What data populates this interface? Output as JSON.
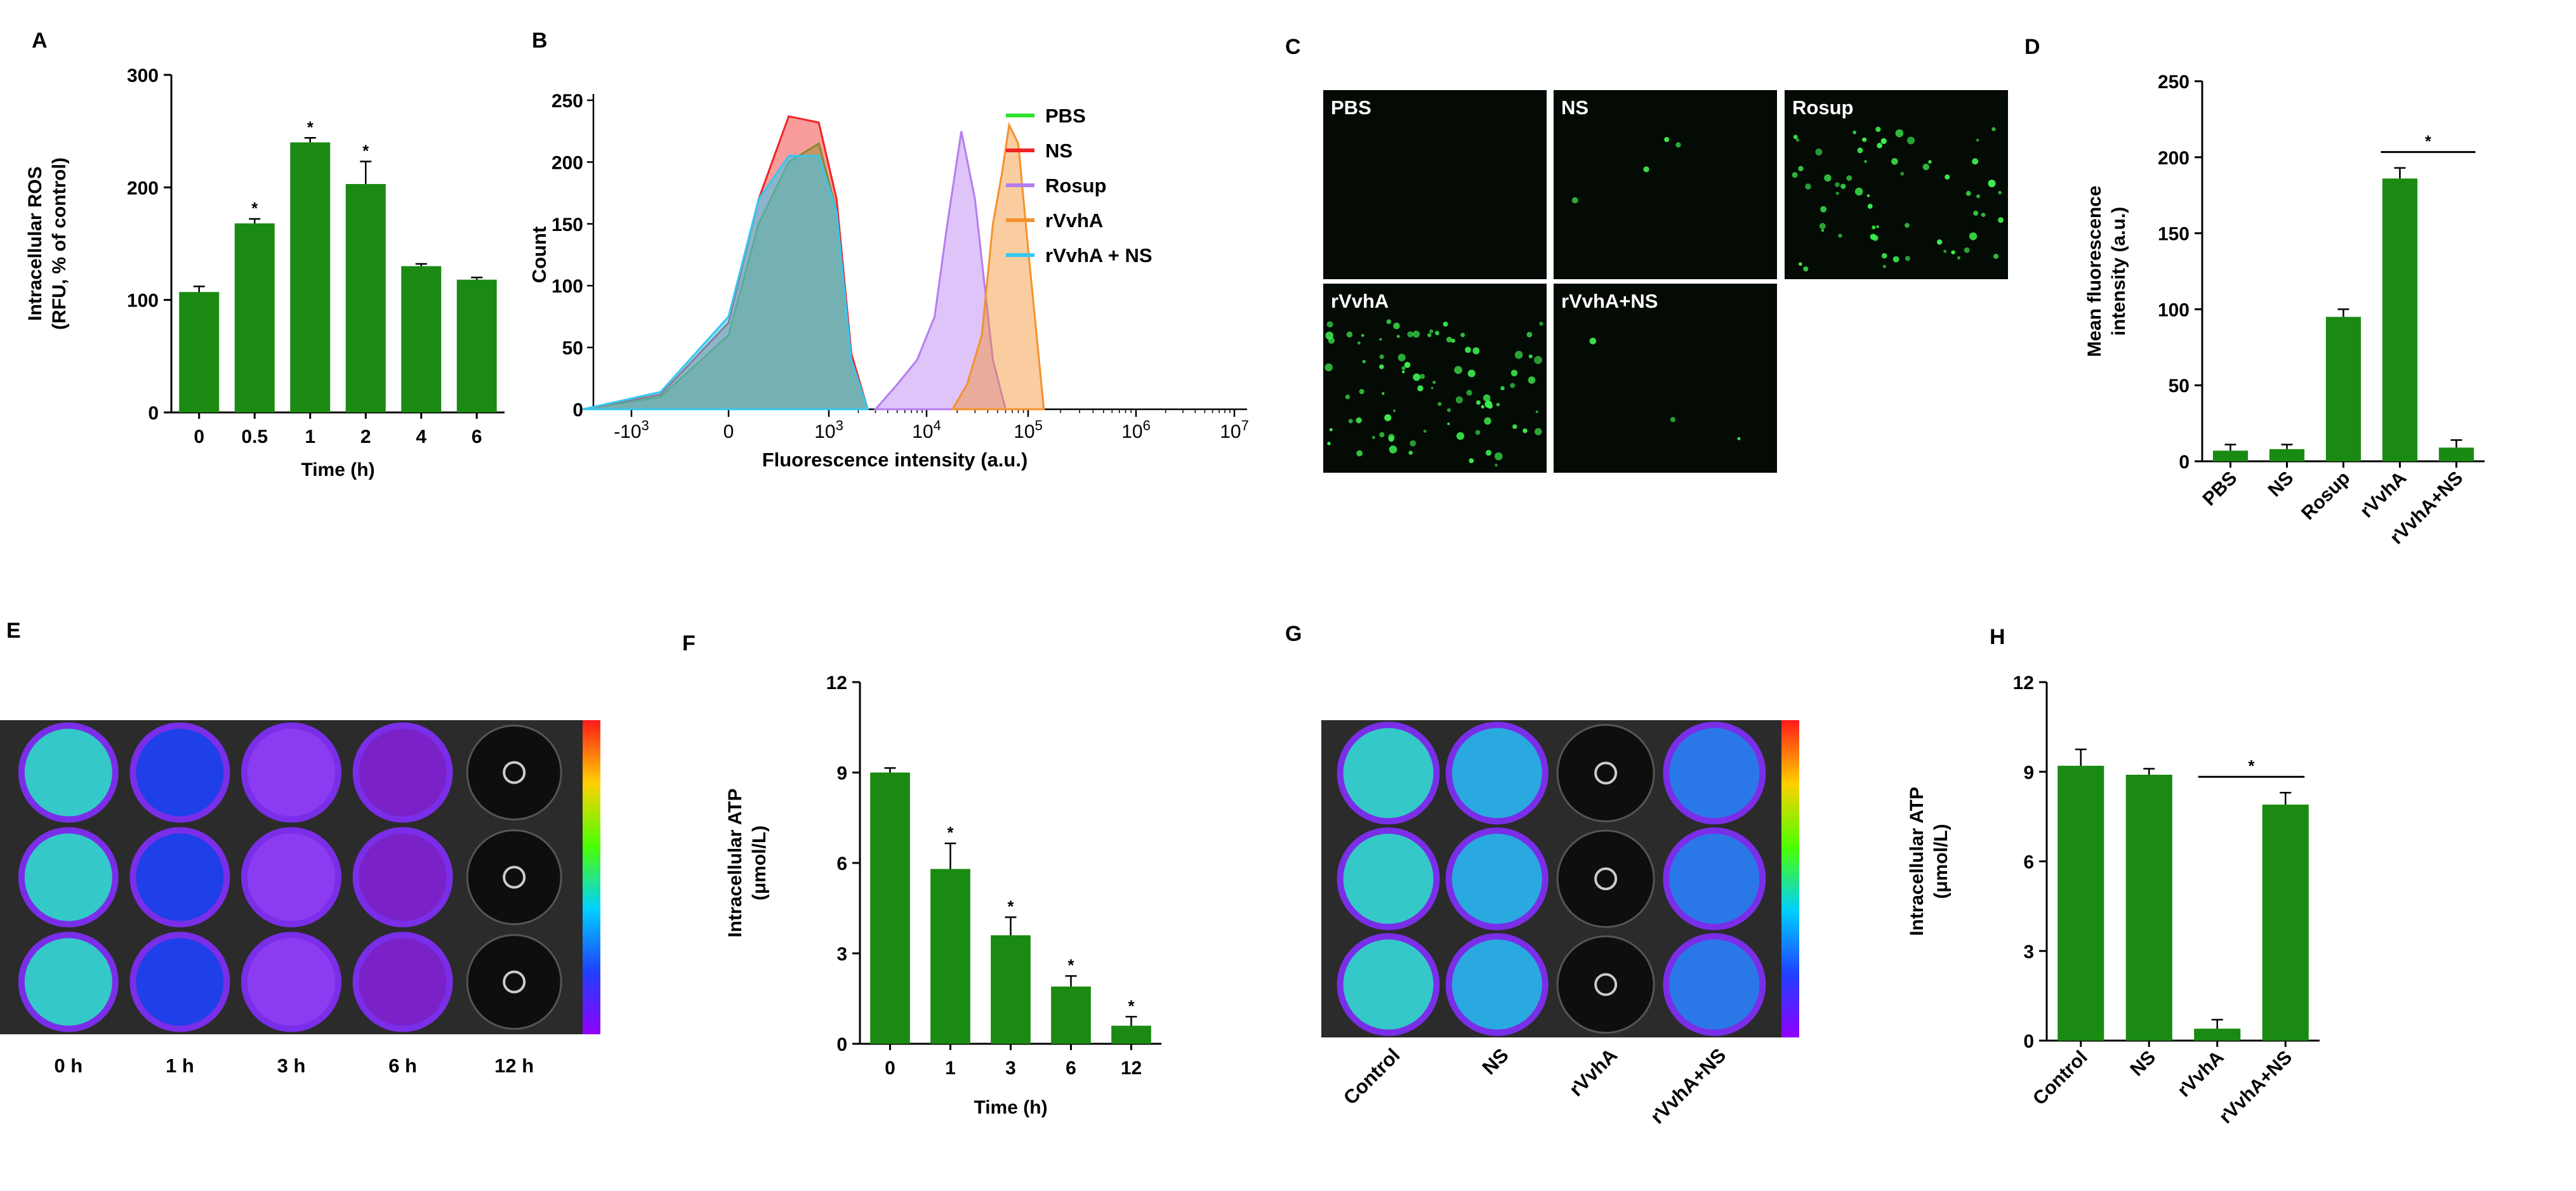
{
  "colors": {
    "bar": "#1a8a12",
    "axis": "#000000",
    "fluor_bg": "#040a04",
    "cell_green": "#3df04f",
    "plate_bg": "#2b2b2b",
    "well_dark": "#111111"
  },
  "panels": {
    "A": {
      "letter": "A"
    },
    "B": {
      "letter": "B"
    },
    "C": {
      "letter": "C"
    },
    "D": {
      "letter": "D"
    },
    "E": {
      "letter": "E"
    },
    "F": {
      "letter": "F"
    },
    "G": {
      "letter": "G"
    },
    "H": {
      "letter": "H"
    }
  },
  "chart_data": [
    {
      "id": "A",
      "type": "bar",
      "categories": [
        "0",
        "0.5",
        "1",
        "2",
        "4",
        "6"
      ],
      "values": [
        107,
        168,
        240,
        203,
        130,
        118
      ],
      "errors": [
        5,
        4,
        4,
        20,
        2,
        2
      ],
      "significance": [
        "",
        "*",
        "*",
        "*",
        "",
        ""
      ],
      "ylim": [
        0,
        300
      ],
      "yticks": [
        "0",
        "100",
        "200",
        "300"
      ],
      "ylabel": [
        "Intracellular ROS",
        "(RFU, % of control)"
      ],
      "xlabel": "Time (h)"
    },
    {
      "id": "B",
      "type": "area",
      "xlabel": "Fluorescence intensity (a.u.)",
      "ylabel": "Count",
      "ylim": [
        0,
        250
      ],
      "yticks": [
        "0",
        "50",
        "100",
        "150",
        "200",
        "250"
      ],
      "xticks": [
        {
          "base": "-10",
          "exp": "3"
        },
        {
          "base": "0",
          "exp": ""
        },
        {
          "base": "10",
          "exp": "3"
        },
        {
          "base": "10",
          "exp": "4"
        },
        {
          "base": "10",
          "exp": "5"
        },
        {
          "base": "10",
          "exp": "6"
        },
        {
          "base": "10",
          "exp": "7"
        }
      ],
      "x_scale": "biexponential",
      "series": [
        {
          "name": "PBS",
          "color": "#2fe02f",
          "x": [
            -1500,
            -700,
            0,
            300,
            600,
            900,
            1200,
            1700,
            2500
          ],
          "y": [
            0,
            10,
            60,
            150,
            200,
            215,
            160,
            40,
            0
          ]
        },
        {
          "name": "NS",
          "color": "#f02424",
          "x": [
            -1500,
            -700,
            0,
            300,
            600,
            900,
            1200,
            1700,
            2500
          ],
          "y": [
            0,
            12,
            70,
            170,
            237,
            232,
            170,
            45,
            0
          ]
        },
        {
          "name": "Rosup",
          "color": "#b57cf0",
          "x": [
            3000,
            5000,
            8000,
            12000,
            16000,
            22000,
            30000,
            45000,
            60000
          ],
          "y": [
            0,
            20,
            40,
            75,
            150,
            225,
            170,
            40,
            0
          ]
        },
        {
          "name": "rVvhA",
          "color": "#f5912c",
          "x": [
            18000,
            25000,
            35000,
            45000,
            55000,
            65000,
            80000,
            100000,
            140000
          ],
          "y": [
            0,
            20,
            60,
            150,
            190,
            230,
            215,
            130,
            0
          ]
        },
        {
          "name": "rVvhA + NS",
          "color": "#34c8f0",
          "x": [
            -1500,
            -700,
            0,
            300,
            600,
            900,
            1200,
            1700,
            2500
          ],
          "y": [
            0,
            14,
            75,
            170,
            205,
            205,
            160,
            40,
            0
          ]
        }
      ]
    },
    {
      "id": "D",
      "type": "bar",
      "categories": [
        "PBS",
        "NS",
        "Rosup",
        "rVvhA",
        "rVvhA+NS"
      ],
      "values": [
        7,
        8,
        95,
        186,
        9
      ],
      "errors": [
        4,
        3,
        5,
        7,
        5
      ],
      "ylim": [
        0,
        250
      ],
      "yticks": [
        "0",
        "50",
        "100",
        "150",
        "200",
        "250"
      ],
      "ylabel": [
        "Mean fluorescence",
        "intensity (a.u.)"
      ],
      "significance_bracket": {
        "from": 3,
        "to": 4,
        "label": "*"
      }
    },
    {
      "id": "F",
      "type": "bar",
      "categories": [
        "0",
        "1",
        "3",
        "6",
        "12"
      ],
      "values": [
        9.0,
        5.8,
        3.6,
        1.9,
        0.6
      ],
      "errors": [
        0.15,
        0.85,
        0.6,
        0.35,
        0.3
      ],
      "significance": [
        "",
        "*",
        "*",
        "*",
        "*"
      ],
      "ylim": [
        0,
        12
      ],
      "yticks": [
        "0",
        "3",
        "6",
        "9",
        "12"
      ],
      "ylabel": [
        "Intracellular ATP",
        "(μmol/L)"
      ],
      "xlabel": "Time (h)"
    },
    {
      "id": "H",
      "type": "bar",
      "categories": [
        "Control",
        "NS",
        "rVvhA",
        "rVvhA+NS"
      ],
      "values": [
        9.2,
        8.9,
        0.4,
        7.9
      ],
      "errors": [
        0.55,
        0.2,
        0.3,
        0.4
      ],
      "ylim": [
        0,
        12
      ],
      "yticks": [
        "0",
        "3",
        "6",
        "9",
        "12"
      ],
      "ylabel": [
        "Intracellular ATP",
        "(μmol/L)"
      ],
      "significance_bracket": {
        "from": 2,
        "to": 3,
        "label": "*"
      }
    }
  ],
  "microscopy": {
    "tiles": [
      {
        "label": "PBS",
        "green_spots": 0
      },
      {
        "label": "NS",
        "green_spots": 4
      },
      {
        "label": "Rosup",
        "green_spots": 60
      },
      {
        "label": "rVvhA",
        "green_spots": 85
      },
      {
        "label": "rVvhA+NS",
        "green_spots": 3
      }
    ]
  },
  "plate_E": {
    "column_labels": [
      "0 h",
      "1 h",
      "3 h",
      "6 h",
      "12 h"
    ],
    "rows": 3,
    "well_colors": [
      "#35c8c8",
      "#1f3fe8",
      "#8c3cf0",
      "#7a22c8",
      "#1a1a1a"
    ],
    "colorbar": [
      "#ff1a1a",
      "#ffd000",
      "#4cff00",
      "#00d0ff",
      "#2040ff",
      "#9000ff"
    ]
  },
  "plate_G": {
    "column_labels": [
      "Control",
      "NS",
      "rVvhA",
      "rVvhA+NS"
    ],
    "rows": 3,
    "well_colors": [
      "#35c8c8",
      "#2aa8e0",
      "#1a1a1a",
      "#2a78e8"
    ],
    "colorbar": [
      "#ff1a1a",
      "#ffd000",
      "#4cff00",
      "#00d0ff",
      "#2040ff",
      "#9000ff"
    ]
  }
}
